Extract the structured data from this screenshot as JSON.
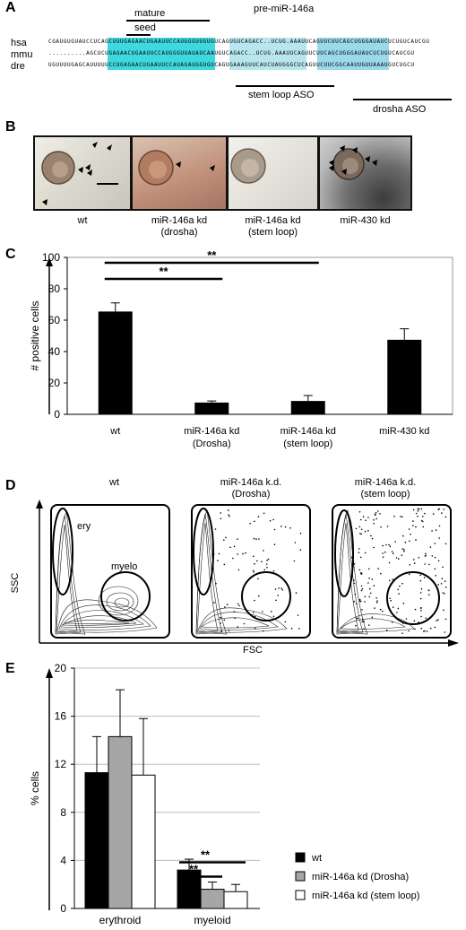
{
  "panelA": {
    "label": "A",
    "title": "pre-miR-146a",
    "mature_label": "mature",
    "seed_label": "seed",
    "stemloop_label": "stem loop ASO",
    "drosha_label": "drosha ASO",
    "species": [
      "hsa",
      "mmu",
      "dre"
    ],
    "sequences": [
      "CGAUGUGUAUCCUCAGCUUUGAGAACUGAAUUCCAUGGGUUGUGUCAGUGUCAGACC..UCUG.AAAUUCAGUUCUUCAGCUGGGAUAUCUCUGUCAUCGU",
      "..........AGCUCUGAGAACUGAAUUCCAUGGGUUAUAUCAAUGUCAGACC..UCUG.AAAUUCAGUUCUUCAGCUGGGAUAUCUCUGUCAUCGU",
      "UGUUUUGAGCAUUUUUCCUGAGAACUGAAUUCCAUAGAUGGUGUCAGUGAAAGUUCAUCUAUGGGCUCAGUUCUUCGGCAAUUGUUAAAUGUCUGCU"
    ]
  },
  "panelB": {
    "label": "B",
    "captions": [
      [
        "wt"
      ],
      [
        "miR-146a kd",
        "(drosha)"
      ],
      [
        "miR-146a kd",
        "(stem loop)"
      ],
      [
        "miR-430 kd"
      ]
    ]
  },
  "panelC": {
    "label": "C",
    "chart_data": {
      "type": "bar",
      "categories": [
        [
          "wt"
        ],
        [
          "miR-146a kd",
          "(Drosha)"
        ],
        [
          "miR-146a kd",
          "(stem loop)"
        ],
        [
          "miR-430 kd"
        ]
      ],
      "values": [
        65.5,
        7.5,
        8.5,
        47.5
      ],
      "errors": [
        5.5,
        1.0,
        3.5,
        7.0
      ],
      "ylabel": "# positive cells",
      "ylim": [
        0,
        100
      ],
      "yticks": [
        0,
        20,
        40,
        60,
        80,
        100
      ],
      "significance": [
        {
          "from": 0,
          "to": 1,
          "label": "**"
        },
        {
          "from": 0,
          "to": 2,
          "label": "**"
        }
      ],
      "grid": false
    }
  },
  "panelD": {
    "label": "D",
    "titles": [
      [
        "wt"
      ],
      [
        "miR-146a k.d.",
        "(Drosha)"
      ],
      [
        "miR-146a k.d.",
        "(stem loop)"
      ]
    ],
    "ery_label": "ery",
    "myelo_label": "myelo",
    "ylabel": "SSC",
    "xlabel": "FSC"
  },
  "panelE": {
    "label": "E",
    "chart_data": {
      "type": "bar",
      "categories": [
        "erythroid",
        "myeloid"
      ],
      "series": [
        {
          "name": "wt",
          "color": "#000000",
          "values": [
            11.3,
            3.2
          ],
          "errors": [
            3.0,
            0.9
          ]
        },
        {
          "name": "miR-146a kd (Drosha)",
          "color": "#a6a6a6",
          "values": [
            14.3,
            1.6
          ],
          "errors": [
            3.9,
            0.6
          ]
        },
        {
          "name": "miR-146a kd (stem loop)",
          "color": "#ffffff",
          "values": [
            11.1,
            1.4
          ],
          "errors": [
            4.7,
            0.6
          ]
        }
      ],
      "ylabel": "% cells",
      "ylim": [
        0,
        20
      ],
      "yticks": [
        0,
        4,
        8,
        12,
        16,
        20
      ],
      "grid": true,
      "legend": "right",
      "significance": [
        {
          "category": 1,
          "from": 0,
          "to": 1,
          "label": "**"
        },
        {
          "category": 1,
          "from": 0,
          "to": 2,
          "label": "**"
        }
      ]
    }
  }
}
